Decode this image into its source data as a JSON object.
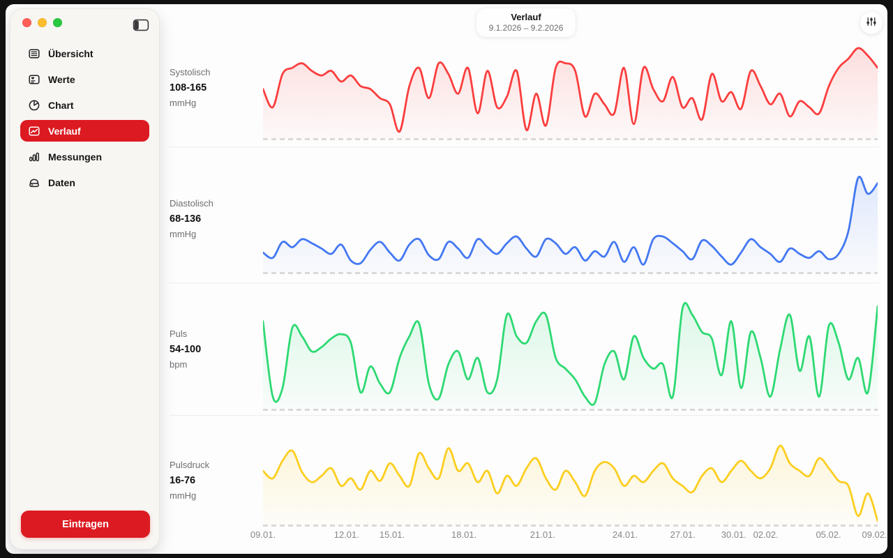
{
  "window_controls": {
    "close_color": "#ff5f57",
    "minimize_color": "#febc2e",
    "zoom_color": "#28c840"
  },
  "sidebar": {
    "items": [
      {
        "label": "Übersicht",
        "icon": "overview-list-icon",
        "active": false
      },
      {
        "label": "Werte",
        "icon": "values-card-icon",
        "active": false
      },
      {
        "label": "Chart",
        "icon": "pie-chart-icon",
        "active": false
      },
      {
        "label": "Verlauf",
        "icon": "trend-line-icon",
        "active": true
      },
      {
        "label": "Messungen",
        "icon": "bar-measurements-icon",
        "active": false
      },
      {
        "label": "Daten",
        "icon": "data-drive-icon",
        "active": false
      }
    ],
    "entry_button_label": "Eintragen"
  },
  "header": {
    "title": "Verlauf",
    "date_range": "9.1.2026 – 9.2.2026",
    "filter_icon": "sliders-icon"
  },
  "colors": {
    "accent": "#dc1a21",
    "systolic": "#fb3e3e",
    "diastolic": "#4478f2",
    "pulse": "#2ed973",
    "pulse_pressure": "#fcce1f",
    "divider": "#ececec",
    "muted_text": "#86868b"
  },
  "x_axis": {
    "ticks": [
      {
        "label": "09.01.",
        "pos": 0.0
      },
      {
        "label": "12.01.",
        "pos": 0.136
      },
      {
        "label": "15.01.",
        "pos": 0.21
      },
      {
        "label": "18.01.",
        "pos": 0.327
      },
      {
        "label": "21.01.",
        "pos": 0.455
      },
      {
        "label": "24.01.",
        "pos": 0.589
      },
      {
        "label": "27.01.",
        "pos": 0.683
      },
      {
        "label": "30.01.",
        "pos": 0.766
      },
      {
        "label": "02.02.",
        "pos": 0.818
      },
      {
        "label": "05.02.",
        "pos": 0.92
      },
      {
        "label": "09.02.",
        "pos": 0.995
      }
    ]
  },
  "chart_data": [
    {
      "type": "line",
      "title": "Systolisch",
      "range_label": "108-165",
      "unit": "mmHg",
      "color": "#fb3e3e",
      "ymin": 108,
      "ymax": 165,
      "values": [
        138,
        126,
        148,
        152,
        155,
        150,
        147,
        150,
        143,
        147,
        140,
        138,
        132,
        128,
        110,
        140,
        152,
        132,
        155,
        148,
        135,
        152,
        122,
        150,
        126,
        133,
        150,
        111,
        135,
        114,
        152,
        155,
        150,
        120,
        135,
        128,
        122,
        152,
        115,
        152,
        138,
        130,
        146,
        126,
        132,
        118,
        148,
        130,
        136,
        125,
        150,
        140,
        128,
        135,
        120,
        130,
        126,
        122,
        140,
        152,
        158,
        165,
        160,
        152
      ]
    },
    {
      "type": "line",
      "title": "Diastolisch",
      "range_label": "68-136",
      "unit": "mmHg",
      "color": "#4478f2",
      "ymin": 68,
      "ymax": 136,
      "values": [
        80,
        76,
        88,
        84,
        90,
        87,
        83,
        79,
        86,
        74,
        72,
        82,
        88,
        80,
        74,
        86,
        90,
        78,
        75,
        88,
        83,
        76,
        90,
        84,
        79,
        87,
        92,
        83,
        77,
        90,
        87,
        79,
        84,
        74,
        81,
        77,
        88,
        73,
        84,
        71,
        90,
        92,
        87,
        81,
        75,
        89,
        85,
        77,
        71,
        80,
        90,
        84,
        79,
        73,
        83,
        79,
        76,
        81,
        75,
        79,
        96,
        136,
        124,
        132
      ]
    },
    {
      "type": "line",
      "title": "Puls",
      "range_label": "54-100",
      "unit": "bpm",
      "color": "#2ed973",
      "ymin": 54,
      "ymax": 100,
      "values": [
        93,
        58,
        62,
        90,
        86,
        79,
        81,
        85,
        87,
        83,
        60,
        72,
        64,
        60,
        76,
        86,
        92,
        64,
        57,
        73,
        79,
        66,
        76,
        60,
        66,
        96,
        86,
        83,
        93,
        96,
        76,
        71,
        66,
        58,
        55,
        73,
        79,
        66,
        86,
        76,
        71,
        73,
        58,
        99,
        96,
        88,
        85,
        68,
        93,
        62,
        88,
        76,
        58,
        80,
        96,
        70,
        86,
        58,
        91,
        83,
        66,
        76,
        60,
        100
      ]
    },
    {
      "type": "line",
      "title": "Pulsdruck",
      "range_label": "16-76",
      "unit": "mmHg",
      "color": "#fcce1f",
      "ymin": 16,
      "ymax": 76,
      "values": [
        56,
        50,
        64,
        72,
        55,
        47,
        52,
        58,
        44,
        50,
        41,
        56,
        48,
        62,
        52,
        44,
        70,
        58,
        50,
        74,
        56,
        62,
        47,
        56,
        38,
        52,
        44,
        58,
        66,
        50,
        41,
        56,
        47,
        36,
        56,
        63,
        58,
        44,
        52,
        47,
        56,
        62,
        50,
        44,
        39,
        52,
        58,
        47,
        56,
        64,
        56,
        50,
        58,
        76,
        62,
        56,
        52,
        66,
        58,
        48,
        44,
        20,
        38,
        16
      ]
    }
  ]
}
